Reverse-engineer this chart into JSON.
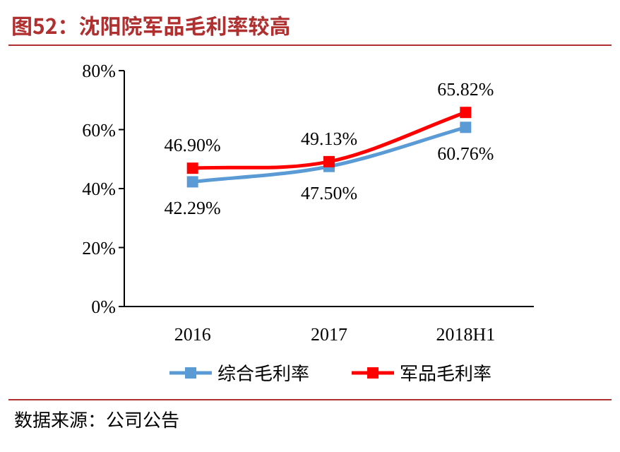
{
  "chart_data": {
    "type": "line",
    "title": "图52：沈阳院军品毛利率较高",
    "categories": [
      "2016",
      "2017",
      "2018H1"
    ],
    "series": [
      {
        "name": "综合毛利率",
        "color": "#5b9bd5",
        "values": [
          42.29,
          47.5,
          60.76
        ],
        "value_labels": [
          "42.29%",
          "47.50%",
          "60.76%"
        ]
      },
      {
        "name": "军品毛利率",
        "color": "#ff0000",
        "values": [
          46.9,
          49.13,
          65.82
        ],
        "value_labels": [
          "46.90%",
          "49.13%",
          "65.82%"
        ]
      }
    ],
    "ylim": [
      0,
      80
    ],
    "yticks": [
      {
        "value": 0,
        "label": "0%"
      },
      {
        "value": 20,
        "label": "20%"
      },
      {
        "value": 40,
        "label": "40%"
      },
      {
        "value": 60,
        "label": "60%"
      },
      {
        "value": 80,
        "label": "80%"
      }
    ],
    "marker": "square",
    "legend": "bottom",
    "grid": false,
    "annotations": [
      "数据来源：公司公告"
    ]
  }
}
